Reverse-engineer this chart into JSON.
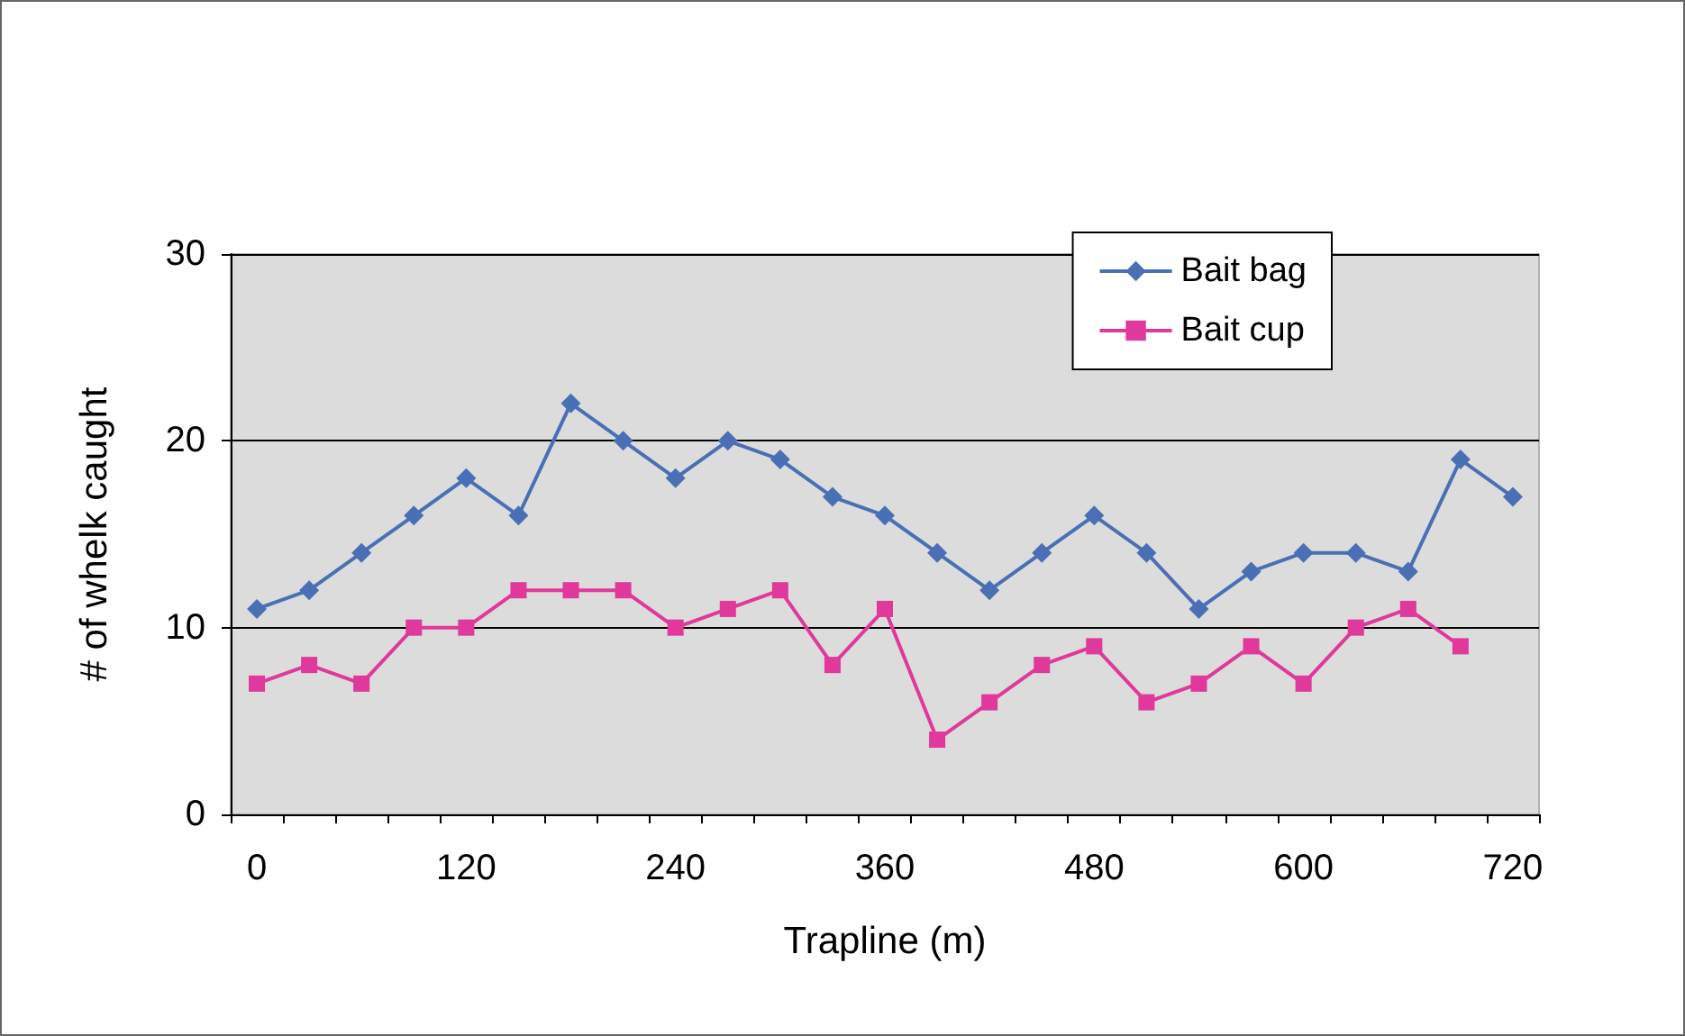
{
  "chart_data": {
    "type": "line",
    "xlabel": "Trapline (m)",
    "ylabel": "# of whelk caught",
    "categories": [
      "0",
      null,
      null,
      null,
      "120",
      null,
      null,
      null,
      "240",
      null,
      null,
      null,
      "360",
      null,
      null,
      null,
      "480",
      null,
      null,
      null,
      "600",
      null,
      null,
      null,
      "720"
    ],
    "series": [
      {
        "name": "Bait bag",
        "color": "#4a6fb5",
        "marker": "diamond",
        "values": [
          11,
          12,
          14,
          16,
          18,
          16,
          22,
          20,
          18,
          20,
          19,
          17,
          16,
          14,
          12,
          14,
          16,
          14,
          11,
          13,
          14,
          14,
          13,
          19,
          17
        ]
      },
      {
        "name": "Bait cup",
        "color": "#e0389b",
        "marker": "square",
        "values": [
          7,
          8,
          7,
          10,
          10,
          12,
          12,
          12,
          10,
          11,
          12,
          8,
          11,
          4,
          6,
          8,
          9,
          6,
          7,
          9,
          7,
          10,
          11,
          9,
          null
        ]
      }
    ],
    "ylim": [
      0,
      30
    ],
    "yticks": [
      0,
      10,
      20,
      30
    ],
    "grid": "y",
    "legend": "top right",
    "line_style": "solid"
  }
}
